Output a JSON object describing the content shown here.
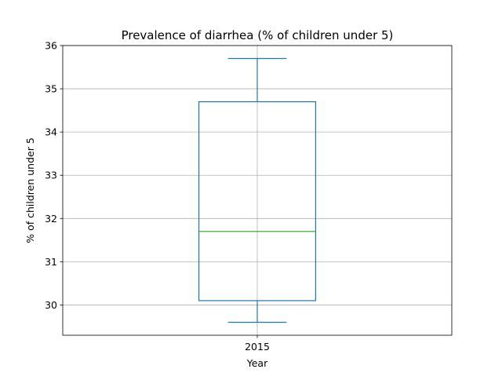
{
  "chart_data": {
    "type": "box",
    "title": "Prevalence of diarrhea (% of children under 5)",
    "xlabel": "Year",
    "ylabel": "% of children under 5",
    "categories": [
      "2015"
    ],
    "ylim": [
      29.3,
      36.0
    ],
    "yticks": [
      30,
      31,
      32,
      33,
      34,
      35,
      36
    ],
    "grid": true,
    "boxes": [
      {
        "category": "2015",
        "whisker_low": 29.6,
        "q1": 30.1,
        "median": 31.7,
        "q3": 34.7,
        "whisker_high": 35.7
      }
    ],
    "colors": {
      "box": "#1f77b4",
      "median": "#2ca02c",
      "grid": "#b0b0b0",
      "axes": "#000000"
    }
  }
}
